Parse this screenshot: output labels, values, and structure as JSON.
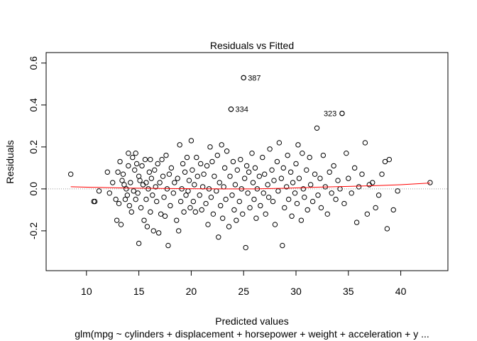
{
  "chart_data": {
    "type": "scatter",
    "title": "Residuals vs Fitted",
    "xlabel": "Predicted values",
    "subtitle": "glm(mpg ~ cylinders + displacement + horsepower + weight + acceleration + y ...",
    "ylabel": "Residuals",
    "xlim": [
      6.15,
      44.5
    ],
    "ylim": [
      -0.39,
      0.65
    ],
    "xticks": [
      "10",
      "15",
      "20",
      "25",
      "30",
      "35",
      "40"
    ],
    "yticks": [
      "-0.2",
      "0.0",
      "0.2",
      "0.4",
      "0.6"
    ],
    "reference_line": 0,
    "colors": {
      "points": "#000000",
      "smooth": "#ff0000",
      "reference": "#999999"
    },
    "labeled_points": [
      {
        "label": "387",
        "x": 25.0,
        "y": 0.53
      },
      {
        "label": "334",
        "x": 23.8,
        "y": 0.38
      },
      {
        "label": "323",
        "x": 34.4,
        "y": 0.36
      }
    ],
    "smooth": [
      [
        8.5,
        0.01
      ],
      [
        11,
        0.007
      ],
      [
        14,
        0.004
      ],
      [
        17,
        0.002
      ],
      [
        20,
        0.001
      ],
      [
        23,
        0.0
      ],
      [
        26,
        0.0
      ],
      [
        29,
        0.003
      ],
      [
        32,
        0.008
      ],
      [
        35,
        0.012
      ],
      [
        38,
        0.016
      ],
      [
        40,
        0.02
      ],
      [
        42.8,
        0.028
      ]
    ],
    "points": [
      [
        8.5,
        0.07
      ],
      [
        10.7,
        -0.06
      ],
      [
        10.8,
        -0.06
      ],
      [
        11.2,
        -0.01
      ],
      [
        12.0,
        0.08
      ],
      [
        12.2,
        -0.02
      ],
      [
        12.5,
        0.03
      ],
      [
        12.8,
        -0.05
      ],
      [
        12.9,
        -0.15
      ],
      [
        13.0,
        0.08
      ],
      [
        13.1,
        -0.07
      ],
      [
        13.2,
        0.13
      ],
      [
        13.3,
        -0.17
      ],
      [
        13.4,
        0.04
      ],
      [
        13.5,
        0.07
      ],
      [
        13.6,
        0.02
      ],
      [
        13.7,
        -0.05
      ],
      [
        13.8,
        0.0
      ],
      [
        13.9,
        -0.03
      ],
      [
        14.0,
        0.17
      ],
      [
        14.0,
        0.11
      ],
      [
        14.1,
        -0.08
      ],
      [
        14.2,
        0.03
      ],
      [
        14.3,
        -0.11
      ],
      [
        14.4,
        0.15
      ],
      [
        14.5,
        -0.01
      ],
      [
        14.6,
        0.09
      ],
      [
        14.7,
        0.17
      ],
      [
        14.7,
        -0.05
      ],
      [
        14.8,
        0.12
      ],
      [
        14.9,
        -0.02
      ],
      [
        15.0,
        -0.26
      ],
      [
        15.0,
        0.06
      ],
      [
        15.1,
        0.04
      ],
      [
        15.2,
        -0.09
      ],
      [
        15.3,
        0.11
      ],
      [
        15.4,
        0.02
      ],
      [
        15.5,
        -0.15
      ],
      [
        15.6,
        0.14
      ],
      [
        15.7,
        -0.05
      ],
      [
        15.7,
        0.03
      ],
      [
        15.8,
        -0.18
      ],
      [
        15.9,
        0.0
      ],
      [
        16.0,
        0.08
      ],
      [
        16.1,
        0.14
      ],
      [
        16.1,
        -0.11
      ],
      [
        16.2,
        0.05
      ],
      [
        16.3,
        -0.03
      ],
      [
        16.4,
        -0.2
      ],
      [
        16.5,
        0.09
      ],
      [
        16.6,
        0.01
      ],
      [
        16.7,
        -0.06
      ],
      [
        16.8,
        0.12
      ],
      [
        16.9,
        -0.21
      ],
      [
        17.0,
        0.03
      ],
      [
        17.1,
        -0.12
      ],
      [
        17.2,
        0.14
      ],
      [
        17.3,
        0.06
      ],
      [
        17.4,
        -0.04
      ],
      [
        17.5,
        -0.13
      ],
      [
        17.6,
        0.16
      ],
      [
        17.7,
        0.0
      ],
      [
        17.8,
        -0.27
      ],
      [
        17.9,
        0.07
      ],
      [
        18.0,
        -0.08
      ],
      [
        18.1,
        0.1
      ],
      [
        18.3,
        -0.02
      ],
      [
        18.4,
        0.03
      ],
      [
        18.6,
        -0.15
      ],
      [
        18.7,
        0.05
      ],
      [
        18.8,
        -0.2
      ],
      [
        18.9,
        0.21
      ],
      [
        19.0,
        -0.06
      ],
      [
        19.1,
        0.0
      ],
      [
        19.2,
        0.12
      ],
      [
        19.3,
        -0.11
      ],
      [
        19.4,
        0.08
      ],
      [
        19.5,
        -0.03
      ],
      [
        19.6,
        0.15
      ],
      [
        19.7,
        -0.01
      ],
      [
        19.8,
        0.04
      ],
      [
        19.9,
        -0.09
      ],
      [
        20.0,
        0.23
      ],
      [
        20.1,
        0.09
      ],
      [
        20.2,
        -0.06
      ],
      [
        20.3,
        0.02
      ],
      [
        20.4,
        -0.11
      ],
      [
        20.5,
        0.15
      ],
      [
        20.6,
        0.06
      ],
      [
        20.8,
        -0.03
      ],
      [
        20.9,
        0.12
      ],
      [
        21.0,
        -0.1
      ],
      [
        21.1,
        0.01
      ],
      [
        21.2,
        0.07
      ],
      [
        21.4,
        -0.07
      ],
      [
        21.5,
        0.11
      ],
      [
        21.6,
        -0.17
      ],
      [
        21.7,
        0.0
      ],
      [
        21.8,
        0.2
      ],
      [
        21.9,
        -0.04
      ],
      [
        22.0,
        0.13
      ],
      [
        22.1,
        -0.12
      ],
      [
        22.2,
        0.06
      ],
      [
        22.4,
        -0.01
      ],
      [
        22.5,
        0.16
      ],
      [
        22.6,
        -0.23
      ],
      [
        22.7,
        0.03
      ],
      [
        22.8,
        -0.08
      ],
      [
        22.9,
        0.21
      ],
      [
        23.0,
        -0.14
      ],
      [
        23.1,
        0.01
      ],
      [
        23.2,
        0.1
      ],
      [
        23.3,
        -0.05
      ],
      [
        23.4,
        0.18
      ],
      [
        23.6,
        -0.18
      ],
      [
        23.7,
        0.06
      ],
      [
        23.8,
        0.38
      ],
      [
        23.9,
        -0.03
      ],
      [
        24.0,
        0.13
      ],
      [
        24.1,
        -0.1
      ],
      [
        24.2,
        0.02
      ],
      [
        24.3,
        -0.15
      ],
      [
        24.4,
        0.09
      ],
      [
        24.6,
        -0.06
      ],
      [
        24.7,
        0.14
      ],
      [
        24.8,
        0.0
      ],
      [
        24.9,
        -0.12
      ],
      [
        25.0,
        0.53
      ],
      [
        25.1,
        0.05
      ],
      [
        25.2,
        -0.28
      ],
      [
        25.3,
        0.11
      ],
      [
        25.4,
        -0.02
      ],
      [
        25.5,
        0.08
      ],
      [
        25.6,
        -0.09
      ],
      [
        25.8,
        0.17
      ],
      [
        25.9,
        0.03
      ],
      [
        26.0,
        -0.05
      ],
      [
        26.1,
        0.1
      ],
      [
        26.2,
        -0.14
      ],
      [
        26.3,
        0.0
      ],
      [
        26.5,
        0.06
      ],
      [
        26.6,
        -0.08
      ],
      [
        26.8,
        0.15
      ],
      [
        26.9,
        -0.02
      ],
      [
        27.0,
        0.07
      ],
      [
        27.1,
        -0.12
      ],
      [
        27.3,
        0.02
      ],
      [
        27.4,
        -0.04
      ],
      [
        27.5,
        0.19
      ],
      [
        27.7,
        0.09
      ],
      [
        27.8,
        -0.06
      ],
      [
        27.9,
        0.04
      ],
      [
        28.0,
        -0.17
      ],
      [
        28.2,
        0.13
      ],
      [
        28.3,
        -0.01
      ],
      [
        28.4,
        0.22
      ],
      [
        28.6,
        0.05
      ],
      [
        28.7,
        -0.27
      ],
      [
        28.8,
        0.1
      ],
      [
        28.9,
        -0.09
      ],
      [
        29.1,
        0.01
      ],
      [
        29.2,
        0.16
      ],
      [
        29.3,
        -0.05
      ],
      [
        29.5,
        0.08
      ],
      [
        29.6,
        -0.13
      ],
      [
        29.7,
        0.03
      ],
      [
        29.9,
        -0.02
      ],
      [
        30.0,
        0.12
      ],
      [
        30.1,
        -0.07
      ],
      [
        30.2,
        0.21
      ],
      [
        30.3,
        0.05
      ],
      [
        30.5,
        -0.15
      ],
      [
        30.6,
        0.17
      ],
      [
        30.7,
        0.0
      ],
      [
        30.8,
        -0.04
      ],
      [
        31.0,
        0.09
      ],
      [
        31.1,
        -0.1
      ],
      [
        31.3,
        0.15
      ],
      [
        31.4,
        0.02
      ],
      [
        31.6,
        -0.06
      ],
      [
        31.8,
        0.07
      ],
      [
        32.0,
        0.29
      ],
      [
        32.1,
        -0.03
      ],
      [
        32.3,
        0.05
      ],
      [
        32.4,
        -0.09
      ],
      [
        32.6,
        0.16
      ],
      [
        32.8,
        0.01
      ],
      [
        33.0,
        -0.12
      ],
      [
        33.2,
        0.08
      ],
      [
        33.4,
        -0.02
      ],
      [
        33.6,
        0.11
      ],
      [
        33.8,
        -0.05
      ],
      [
        34.0,
        0.04
      ],
      [
        34.2,
        0.0
      ],
      [
        34.4,
        0.36
      ],
      [
        34.6,
        -0.07
      ],
      [
        34.8,
        0.17
      ],
      [
        35.0,
        0.05
      ],
      [
        35.3,
        -0.02
      ],
      [
        35.6,
        0.1
      ],
      [
        35.8,
        -0.16
      ],
      [
        36.0,
        0.01
      ],
      [
        36.3,
        0.07
      ],
      [
        36.6,
        0.22
      ],
      [
        36.8,
        -0.12
      ],
      [
        37.0,
        0.02
      ],
      [
        37.3,
        0.03
      ],
      [
        37.6,
        -0.09
      ],
      [
        37.9,
        -0.03
      ],
      [
        38.2,
        0.07
      ],
      [
        38.5,
        0.13
      ],
      [
        38.7,
        -0.19
      ],
      [
        38.9,
        0.14
      ],
      [
        39.3,
        -0.1
      ],
      [
        39.7,
        -0.01
      ],
      [
        42.8,
        0.03
      ]
    ]
  }
}
